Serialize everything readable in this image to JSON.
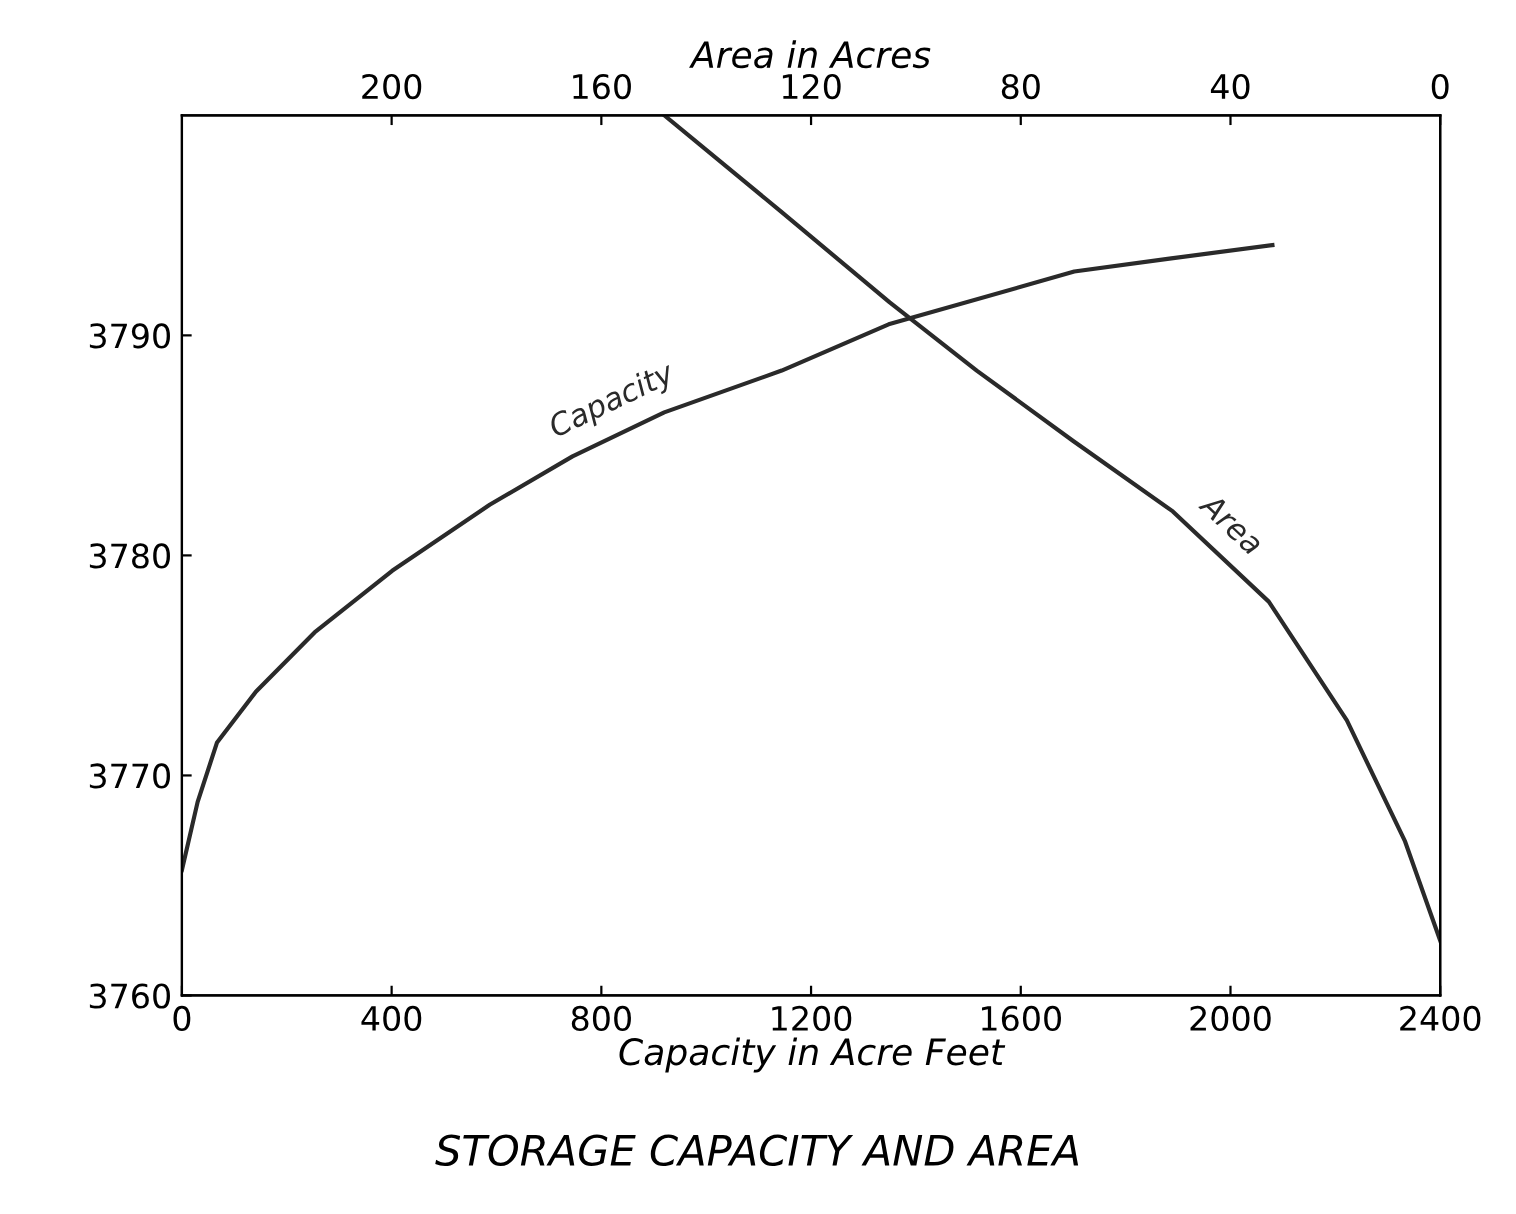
{
  "chart_data": {
    "type": "line",
    "title": "STORAGE CAPACITY AND AREA",
    "xlabel": "Capacity in Acre Feet",
    "x2label": "Area in Acres",
    "xlim": [
      0,
      2400
    ],
    "xticks": [
      0,
      400,
      800,
      1200,
      1600,
      2000,
      2400
    ],
    "x2lim": [
      240,
      0
    ],
    "x2ticks": [
      200,
      160,
      120,
      80,
      40,
      0
    ],
    "ylim": [
      3760,
      3800
    ],
    "yticks": [
      3760,
      3770,
      3780,
      3790
    ],
    "grid": false,
    "legend": false,
    "marker": "none",
    "line_style": "solid",
    "series": [
      {
        "name": "Capacity",
        "color": "#2a2a2a",
        "x": [
          0,
          30,
          67,
          141,
          253,
          401,
          587,
          745,
          920,
          1144,
          1348,
          1702,
          1887,
          2080
        ],
        "values": [
          3765.7,
          3768.8,
          3771.5,
          3773.8,
          3776.5,
          3779.3,
          3782.3,
          3784.5,
          3786.5,
          3788.4,
          3790.5,
          3792.9,
          3793.5,
          3794.1
        ]
      },
      {
        "name": "Area",
        "color": "#2a2a2a",
        "axis": "x2",
        "x": [
          148,
          125.6,
          105,
          88.4,
          70,
          51,
          32.7,
          17.8,
          6.7,
          0
        ],
        "values": [
          3800,
          3795.6,
          3791.5,
          3788.4,
          3785.2,
          3782,
          3777.9,
          3772.5,
          3767,
          3762.5
        ]
      }
    ]
  }
}
